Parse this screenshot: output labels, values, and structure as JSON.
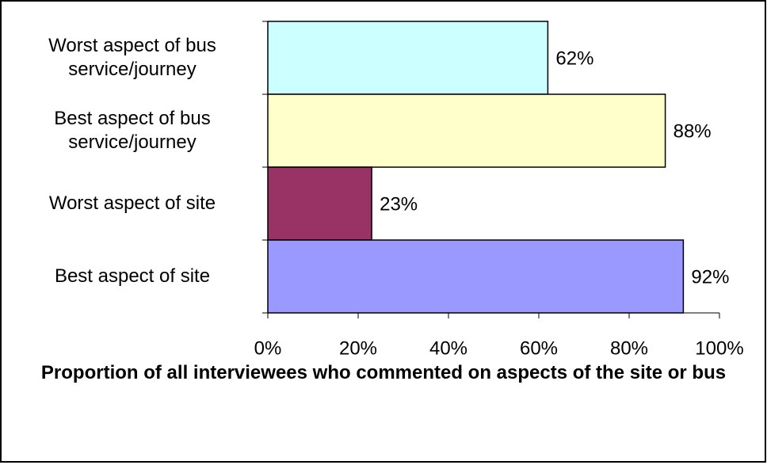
{
  "chart_data": {
    "type": "bar",
    "orientation": "horizontal",
    "x_label": "Proportion of all interviewees who commented on aspects of the site or bus",
    "categories": [
      "Worst aspect of bus service/journey",
      "Best aspect of bus service/journey",
      "Worst aspect of site",
      "Best aspect of site"
    ],
    "series": [
      {
        "colors": [
          "#ccffff",
          "#ffffcc",
          "#993366",
          "#9999ff"
        ],
        "values": [
          62,
          88,
          23,
          92
        ],
        "value_labels": [
          "62%",
          "88%",
          "23%",
          "92%"
        ]
      }
    ],
    "xlim": [
      0,
      100
    ],
    "xticks": [
      {
        "value": 0,
        "label": "0%"
      },
      {
        "value": 20,
        "label": "20%"
      },
      {
        "value": 40,
        "label": "40%"
      },
      {
        "value": 60,
        "label": "60%"
      },
      {
        "value": 80,
        "label": "80%"
      },
      {
        "value": 100,
        "label": "100%"
      }
    ],
    "grid": false
  }
}
